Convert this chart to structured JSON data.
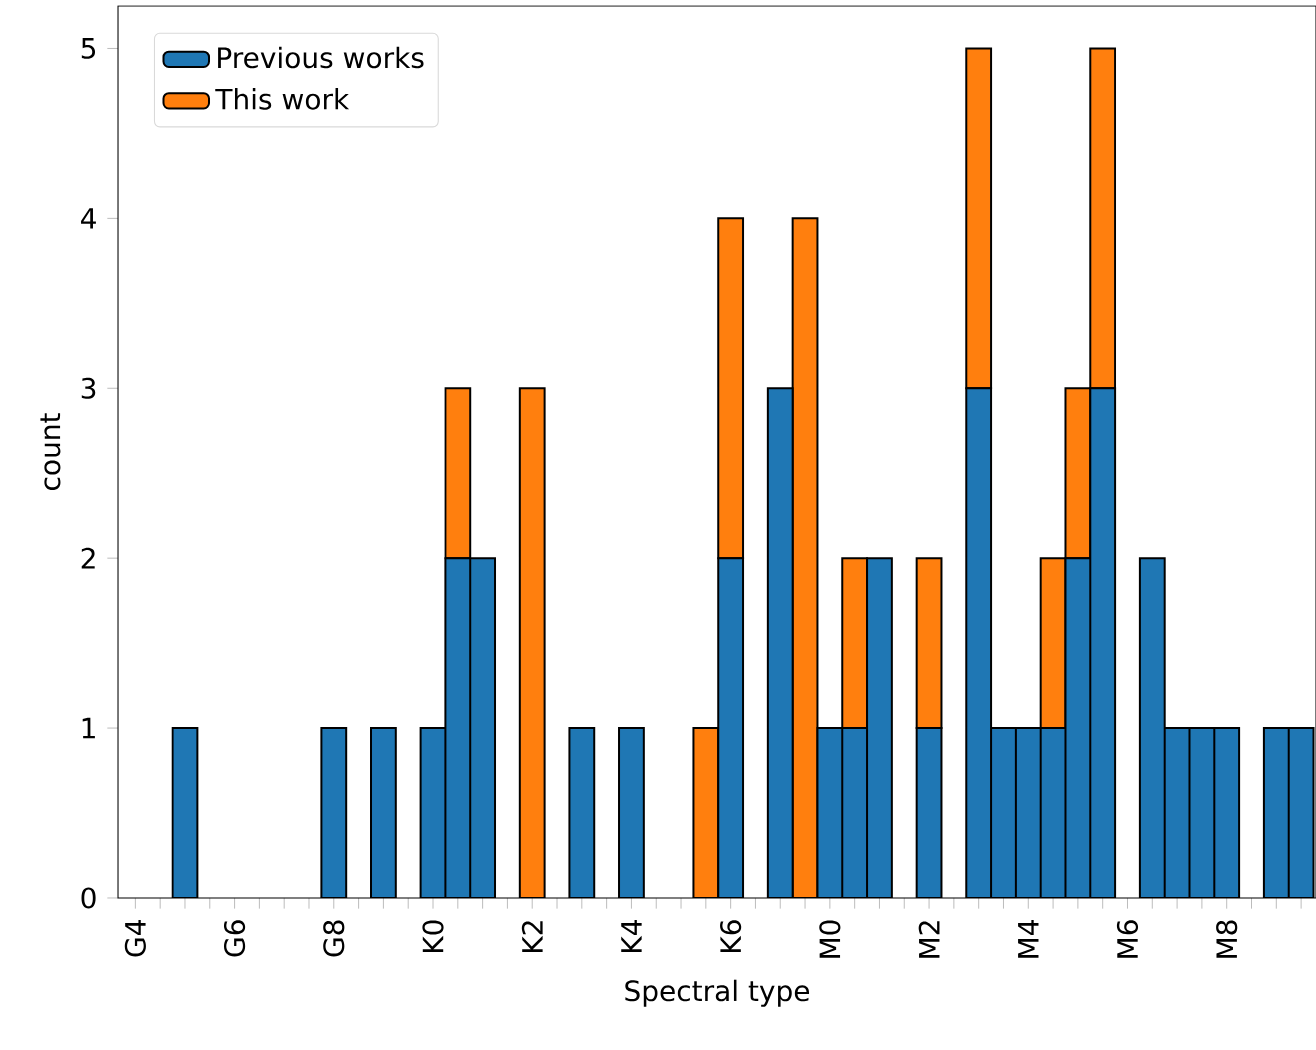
{
  "chart_data": {
    "type": "bar",
    "xlabel": "Spectral type",
    "ylabel": "count",
    "stacked": true,
    "legend": "top left",
    "categories": [
      "G4",
      null,
      null,
      null,
      "G6",
      null,
      null,
      null,
      "G8",
      null,
      null,
      null,
      "K0",
      null,
      null,
      null,
      "K2",
      null,
      null,
      null,
      "K4",
      null,
      null,
      null,
      "K6",
      null,
      null,
      null,
      "M0",
      null,
      null,
      null,
      "M2",
      null,
      null,
      null,
      "M4",
      null,
      null,
      null,
      "M6",
      null,
      null,
      null,
      "M8",
      null,
      null,
      null
    ],
    "series": [
      {
        "name": "Previous works",
        "color": "#1f77b4",
        "values": [
          0,
          0,
          1,
          0,
          0,
          0,
          0,
          0,
          1,
          0,
          1,
          0,
          1,
          2,
          2,
          0,
          0,
          0,
          1,
          0,
          1,
          0,
          0,
          0,
          2,
          0,
          3,
          0,
          1,
          1,
          2,
          0,
          1,
          0,
          3,
          1,
          1,
          1,
          2,
          3,
          0,
          2,
          1,
          1,
          1,
          0,
          1,
          1
        ]
      },
      {
        "name": "This work",
        "color": "#ff7f0e",
        "values": [
          0,
          0,
          0,
          0,
          0,
          0,
          0,
          0,
          0,
          0,
          0,
          0,
          0,
          1,
          0,
          0,
          3,
          0,
          0,
          0,
          0,
          0,
          0,
          1,
          2,
          0,
          0,
          4,
          0,
          1,
          0,
          0,
          1,
          0,
          2,
          0,
          0,
          1,
          1,
          2,
          0,
          0,
          0,
          0,
          0,
          0,
          0,
          0
        ]
      }
    ],
    "ylim": [
      0,
      5.25
    ],
    "yticks": [
      0,
      1,
      2,
      3,
      4,
      5
    ]
  }
}
